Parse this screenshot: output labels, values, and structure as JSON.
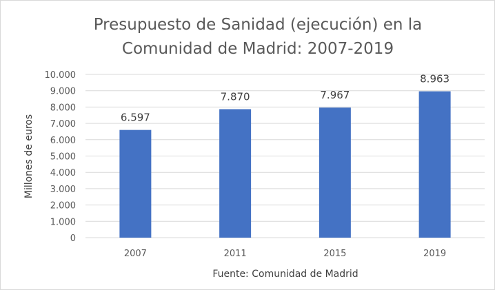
{
  "chart_data": {
    "type": "bar",
    "title_lines": [
      "Presupuesto de Sanidad (ejecución) en la",
      "Comunidad de Madrid: 2007-2019"
    ],
    "categories": [
      "2007",
      "2011",
      "2015",
      "2019"
    ],
    "values": [
      6597,
      7870,
      7967,
      8963
    ],
    "data_labels": [
      "6.597",
      "7.870",
      "7.967",
      "8.963"
    ],
    "y_ticks": [
      0,
      1000,
      2000,
      3000,
      4000,
      5000,
      6000,
      7000,
      8000,
      9000,
      10000
    ],
    "y_tick_labels": [
      "0",
      "1.000",
      "2.000",
      "3.000",
      "4.000",
      "5.000",
      "6.000",
      "7.000",
      "8.000",
      "9.000",
      "10.000"
    ],
    "ylim": [
      0,
      10000
    ],
    "ylabel": "Millones de euros",
    "xlabel": "Fuente: Comunidad de Madrid",
    "grid": true,
    "colors": {
      "bar": "#4472c4",
      "grid": "#d9d9d9",
      "text": "#595959"
    }
  }
}
